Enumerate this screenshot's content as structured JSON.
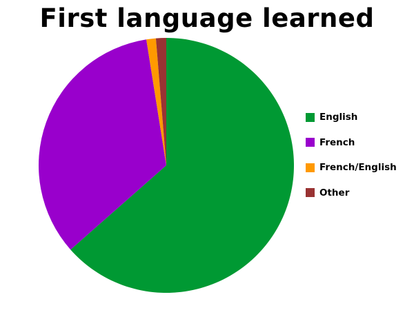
{
  "chart_data": {
    "type": "pie",
    "title": "First language learned",
    "legend_position": "right",
    "start_angle": "top",
    "direction": "clockwise",
    "series": [
      {
        "name": "",
        "values": [
          {
            "label": "English",
            "value": 63.5,
            "color": "#009933"
          },
          {
            "label": "French",
            "value": 34.0,
            "color": "#9900cc"
          },
          {
            "label": "French/English",
            "value": 1.2,
            "color": "#ff9900"
          },
          {
            "label": "Other",
            "value": 1.3,
            "color": "#993333"
          }
        ]
      }
    ],
    "categories": [
      "English",
      "French",
      "French/English",
      "Other"
    ],
    "values": [
      63.5,
      34.0,
      1.2,
      1.3
    ]
  }
}
